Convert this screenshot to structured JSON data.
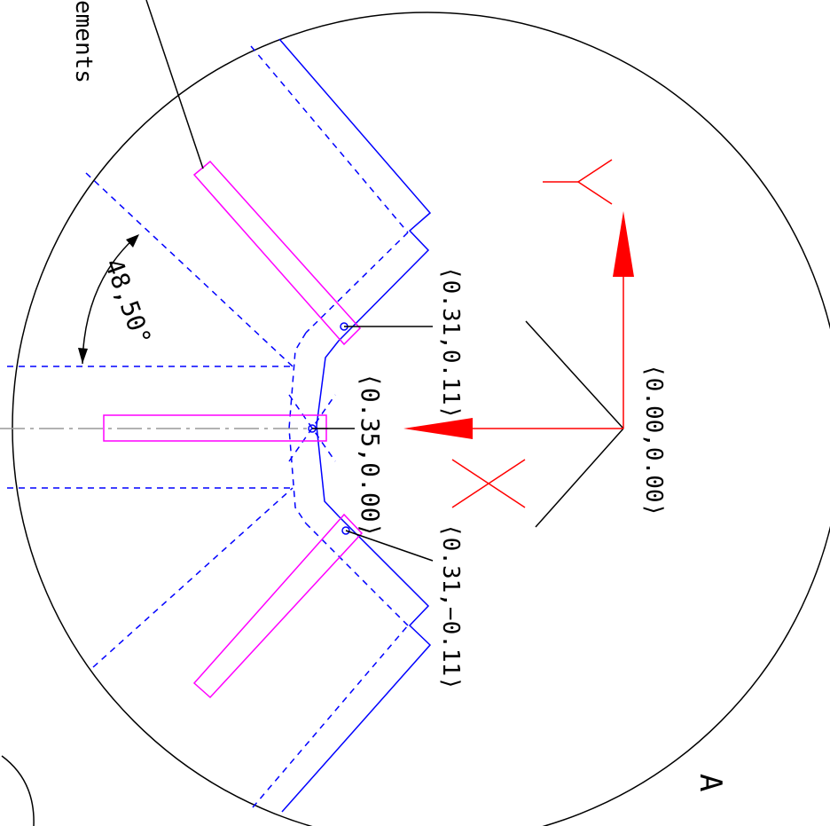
{
  "drawing": {
    "callout_text": "ements",
    "angle_label": "48,50°",
    "point_top": "⟨0.31,0.11⟩",
    "point_center": "⟨0.35,0.00⟩",
    "point_bottom": "⟨0.31,−0.11⟩",
    "origin_label": "⟨0.00,0.00⟩",
    "view_label": "A",
    "colors": {
      "outline": "#000000",
      "blue": "#0000ff",
      "magenta": "#ff00ff",
      "red": "#ff0000",
      "centerline": "#999999"
    }
  }
}
